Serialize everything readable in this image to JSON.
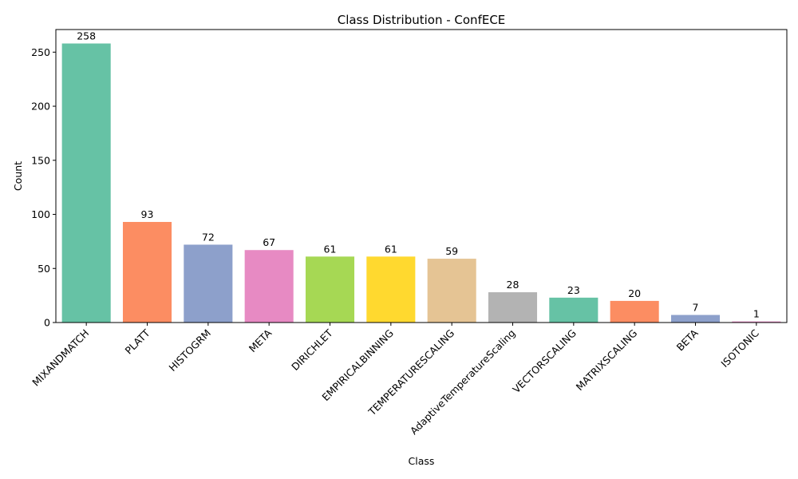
{
  "chart_data": {
    "type": "bar",
    "title": "Class Distribution - ConfECE",
    "xlabel": "Class",
    "ylabel": "Count",
    "categories": [
      "MIXANDMATCH",
      "PLATT",
      "HISTOGRM",
      "META",
      "DIRICHLET",
      "EMPIRICALBINNING",
      "TEMPERATURESCALING",
      "AdaptiveTemperatureScaling",
      "VECTORSCALING",
      "MATRIXSCALING",
      "BETA",
      "ISOTONIC"
    ],
    "values": [
      258,
      93,
      72,
      67,
      61,
      61,
      59,
      28,
      23,
      20,
      7,
      1
    ],
    "colors": [
      "#66c2a5",
      "#fc8d62",
      "#8da0cb",
      "#e78ac3",
      "#a6d854",
      "#ffd92f",
      "#e5c494",
      "#b3b3b3",
      "#66c2a5",
      "#fc8d62",
      "#8da0cb",
      "#e78ac3"
    ],
    "yticks": [
      0,
      50,
      100,
      150,
      200,
      250
    ],
    "ylim": [
      0,
      270.9
    ],
    "grid": false,
    "legend": "none"
  }
}
